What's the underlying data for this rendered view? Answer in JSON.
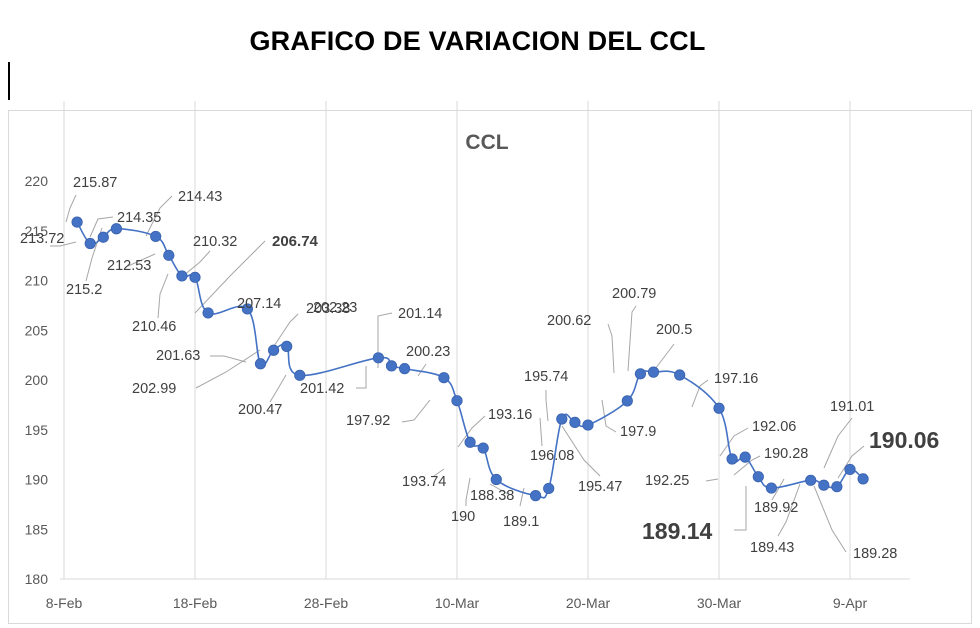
{
  "page": {
    "title": "GRAFICO DE VARIACION DEL CCL"
  },
  "chart_data": {
    "type": "line",
    "title": "CCL",
    "xlabel": "",
    "ylabel": "",
    "ylim": [
      180,
      220
    ],
    "yticks": [
      180,
      185,
      190,
      195,
      200,
      205,
      210,
      215,
      220
    ],
    "xticks": [
      "8-Feb",
      "18-Feb",
      "28-Feb",
      "10-Mar",
      "20-Mar",
      "30-Mar",
      "9-Apr"
    ],
    "legend": "none",
    "grid": "vertical",
    "colors": {
      "line": "#4472c4",
      "marker": "#4472c4",
      "grid": "#d9d9d9",
      "leader": "#a6a6a6"
    },
    "series": [
      {
        "points": [
          {
            "x": "2021-02-09",
            "y": 215.87,
            "label": "215.87"
          },
          {
            "x": "2021-02-10",
            "y": 213.72,
            "label": "213.72"
          },
          {
            "x": "2021-02-11",
            "y": 214.35,
            "label": "214.35"
          },
          {
            "x": "2021-02-12",
            "y": 215.2,
            "label": "215.2"
          },
          {
            "x": "2021-02-15",
            "y": 214.43,
            "label": "214.43"
          },
          {
            "x": "2021-02-16",
            "y": 212.53,
            "label": "212.53"
          },
          {
            "x": "2021-02-17",
            "y": 210.46,
            "label": "210.46"
          },
          {
            "x": "2021-02-18",
            "y": 210.32,
            "label": "210.32"
          },
          {
            "x": "2021-02-19",
            "y": 206.74,
            "label": "206.74"
          },
          {
            "x": "2021-02-22",
            "y": 207.14,
            "label": "207.14"
          },
          {
            "x": "2021-02-23",
            "y": 201.63,
            "label": "201.63"
          },
          {
            "x": "2021-02-24",
            "y": 202.99,
            "label": "202.99"
          },
          {
            "x": "2021-02-25",
            "y": 203.38,
            "label": "203.38"
          },
          {
            "x": "2021-02-26",
            "y": 200.47,
            "label": "200.47"
          },
          {
            "x": "2021-03-04",
            "y": 202.23,
            "label": "202.23"
          },
          {
            "x": "2021-03-05",
            "y": 201.42,
            "label": "201.42"
          },
          {
            "x": "2021-03-06",
            "y": 201.14,
            "label": "201.14"
          },
          {
            "x": "2021-03-09",
            "y": 200.23,
            "label": "200.23"
          },
          {
            "x": "2021-03-10",
            "y": 197.92,
            "label": "197.92"
          },
          {
            "x": "2021-03-11",
            "y": 193.74,
            "label": "193.74"
          },
          {
            "x": "2021-03-12",
            "y": 193.16,
            "label": "193.16"
          },
          {
            "x": "2021-03-13",
            "y": 190,
            "label": "190"
          },
          {
            "x": "2021-03-16",
            "y": 188.38,
            "label": "188.38"
          },
          {
            "x": "2021-03-17",
            "y": 189.1,
            "label": "189.1"
          },
          {
            "x": "2021-03-18",
            "y": 196.08,
            "label": "196.08"
          },
          {
            "x": "2021-03-19",
            "y": 195.74,
            "label": "195.74"
          },
          {
            "x": "2021-03-20",
            "y": 195.47,
            "label": "195.47"
          },
          {
            "x": "2021-03-23",
            "y": 197.9,
            "label": "197.9"
          },
          {
            "x": "2021-03-24",
            "y": 200.62,
            "label": "200.62"
          },
          {
            "x": "2021-03-25",
            "y": 200.79,
            "label": "200.79"
          },
          {
            "x": "2021-03-27",
            "y": 200.5,
            "label": "200.5"
          },
          {
            "x": "2021-03-30",
            "y": 197.16,
            "label": "197.16"
          },
          {
            "x": "2021-03-31",
            "y": 192.06,
            "label": "192.06"
          },
          {
            "x": "2021-04-01",
            "y": 192.25,
            "label": "192.25"
          },
          {
            "x": "2021-04-02",
            "y": 190.28,
            "label": "190.28"
          },
          {
            "x": "2021-04-03",
            "y": 189.14,
            "label": "189.14"
          },
          {
            "x": "2021-04-06",
            "y": 189.92,
            "label": "189.92"
          },
          {
            "x": "2021-04-07",
            "y": 189.43,
            "label": "189.43"
          },
          {
            "x": "2021-04-08",
            "y": 189.28,
            "label": "189.28"
          },
          {
            "x": "2021-04-09",
            "y": 191.01,
            "label": "191.01"
          },
          {
            "x": "2021-04-10",
            "y": 190.06,
            "label": "190.06"
          }
        ]
      }
    ]
  }
}
